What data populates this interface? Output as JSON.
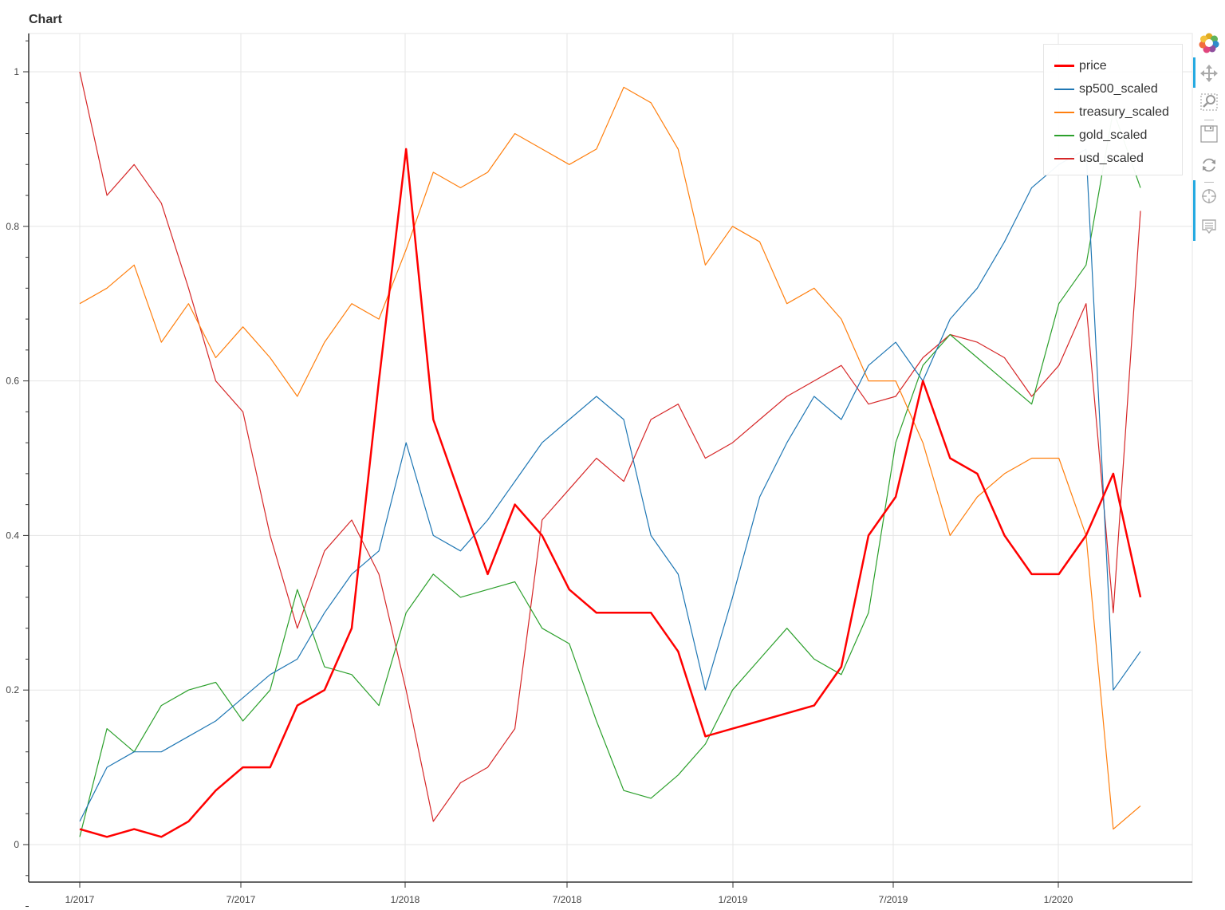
{
  "title": "Chart",
  "toolbar": {
    "items": [
      {
        "name": "bokeh-logo",
        "icon": "bokeh-logo-icon"
      },
      {
        "name": "pan",
        "icon": "pan-icon",
        "active": true
      },
      {
        "name": "box-zoom",
        "icon": "box-zoom-icon",
        "active": true
      },
      {
        "name": "save",
        "icon": "save-icon"
      },
      {
        "name": "reset",
        "icon": "reset-icon"
      },
      {
        "name": "crosshair",
        "icon": "crosshair-icon",
        "active": true
      },
      {
        "name": "hover",
        "icon": "hover-icon",
        "active": true
      }
    ]
  },
  "chart_data": {
    "type": "line",
    "title": "Chart",
    "xlabel": "",
    "ylabel": "",
    "x_tick_labels": [
      "1/2017",
      "7/2017",
      "1/2018",
      "7/2018",
      "1/2019",
      "7/2019",
      "1/2020"
    ],
    "y_tick_labels": [
      "0",
      "0.2",
      "0.4",
      "0.6",
      "0.8",
      "1"
    ],
    "y_ticks": [
      0,
      0.2,
      0.4,
      0.6,
      0.8,
      1.0
    ],
    "ylim": [
      -0.1,
      1.08
    ],
    "xlim": [
      "11/2016",
      "6/2020"
    ],
    "grid": true,
    "legend_position": "top-right",
    "x": [
      "2017-01",
      "2017-02",
      "2017-03",
      "2017-04",
      "2017-05",
      "2017-06",
      "2017-07",
      "2017-08",
      "2017-09",
      "2017-10",
      "2017-11",
      "2017-12",
      "2018-01",
      "2018-02",
      "2018-03",
      "2018-04",
      "2018-05",
      "2018-06",
      "2018-07",
      "2018-08",
      "2018-09",
      "2018-10",
      "2018-11",
      "2018-12",
      "2019-01",
      "2019-02",
      "2019-03",
      "2019-04",
      "2019-05",
      "2019-06",
      "2019-07",
      "2019-08",
      "2019-09",
      "2019-10",
      "2019-11",
      "2019-12",
      "2020-01",
      "2020-02",
      "2020-03",
      "2020-04"
    ],
    "series": [
      {
        "name": "price",
        "color": "#ff0000",
        "width": 2.5,
        "values": [
          0.02,
          0.01,
          0.02,
          0.01,
          0.03,
          0.07,
          0.1,
          0.1,
          0.18,
          0.2,
          0.28,
          0.6,
          0.9,
          0.55,
          0.45,
          0.35,
          0.44,
          0.4,
          0.33,
          0.3,
          0.3,
          0.3,
          0.25,
          0.14,
          0.15,
          0.16,
          0.17,
          0.18,
          0.23,
          0.4,
          0.45,
          0.6,
          0.5,
          0.48,
          0.4,
          0.35,
          0.35,
          0.4,
          0.48,
          0.32
        ]
      },
      {
        "name": "sp500_scaled",
        "color": "#1f77b4",
        "width": 1.2,
        "values": [
          0.03,
          0.1,
          0.12,
          0.12,
          0.14,
          0.16,
          0.19,
          0.22,
          0.24,
          0.3,
          0.35,
          0.38,
          0.52,
          0.4,
          0.38,
          0.42,
          0.47,
          0.52,
          0.55,
          0.58,
          0.55,
          0.4,
          0.35,
          0.2,
          0.32,
          0.45,
          0.52,
          0.58,
          0.55,
          0.62,
          0.65,
          0.6,
          0.68,
          0.72,
          0.78,
          0.85,
          0.88,
          0.9,
          0.2,
          0.25
        ]
      },
      {
        "name": "treasury_scaled",
        "color": "#ff7f0e",
        "width": 1.2,
        "values": [
          0.7,
          0.72,
          0.75,
          0.65,
          0.7,
          0.63,
          0.67,
          0.63,
          0.58,
          0.65,
          0.7,
          0.68,
          0.77,
          0.87,
          0.85,
          0.87,
          0.92,
          0.9,
          0.88,
          0.9,
          0.98,
          0.96,
          0.9,
          0.75,
          0.8,
          0.78,
          0.7,
          0.72,
          0.68,
          0.6,
          0.6,
          0.52,
          0.4,
          0.45,
          0.48,
          0.5,
          0.5,
          0.4,
          0.02,
          0.05
        ]
      },
      {
        "name": "gold_scaled",
        "color": "#2ca02c",
        "width": 1.2,
        "values": [
          0.01,
          0.15,
          0.12,
          0.18,
          0.2,
          0.21,
          0.16,
          0.2,
          0.33,
          0.23,
          0.22,
          0.18,
          0.3,
          0.35,
          0.32,
          0.33,
          0.34,
          0.28,
          0.26,
          0.16,
          0.07,
          0.06,
          0.09,
          0.13,
          0.2,
          0.24,
          0.28,
          0.24,
          0.22,
          0.3,
          0.52,
          0.62,
          0.66,
          0.63,
          0.6,
          0.57,
          0.7,
          0.75,
          0.95,
          0.85
        ]
      },
      {
        "name": "usd_scaled",
        "color": "#d62728",
        "width": 1.2,
        "values": [
          1.0,
          0.84,
          0.88,
          0.83,
          0.72,
          0.6,
          0.56,
          0.4,
          0.28,
          0.38,
          0.42,
          0.35,
          0.2,
          0.03,
          0.08,
          0.1,
          0.15,
          0.42,
          0.46,
          0.5,
          0.47,
          0.55,
          0.57,
          0.5,
          0.52,
          0.55,
          0.58,
          0.6,
          0.62,
          0.57,
          0.58,
          0.63,
          0.66,
          0.65,
          0.63,
          0.58,
          0.62,
          0.7,
          0.3,
          0.82
        ]
      }
    ]
  }
}
